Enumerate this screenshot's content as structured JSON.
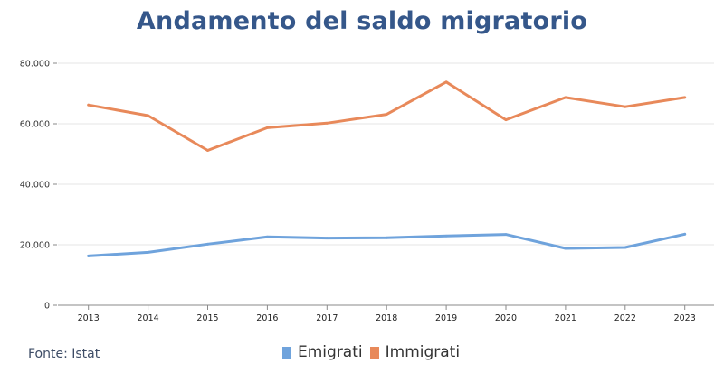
{
  "chart_data": {
    "type": "line",
    "title": "Andamento del saldo migratorio",
    "xlabel": "",
    "ylabel": "",
    "x": [
      "2013",
      "2014",
      "2015",
      "2016",
      "2017",
      "2018",
      "2019",
      "2020",
      "2021",
      "2022",
      "2023"
    ],
    "ylim": [
      0,
      80000
    ],
    "yticks": [
      0,
      20000,
      40000,
      60000,
      80000
    ],
    "ytick_labels": [
      "0",
      "20.000",
      "40.000",
      "60.000",
      "80.000"
    ],
    "grid": true,
    "legend_position": "bottom-center",
    "series": [
      {
        "name": "Emigrati",
        "color": "#6fa3dc",
        "values": [
          16300,
          17500,
          20200,
          22600,
          22200,
          22300,
          22900,
          23400,
          18800,
          19100,
          23500
        ]
      },
      {
        "name": "Immigrati",
        "color": "#e8895a",
        "values": [
          66200,
          62700,
          51200,
          58700,
          60200,
          63100,
          73800,
          61300,
          68700,
          65600,
          68700
        ]
      }
    ],
    "source": "Fonte: Istat"
  }
}
